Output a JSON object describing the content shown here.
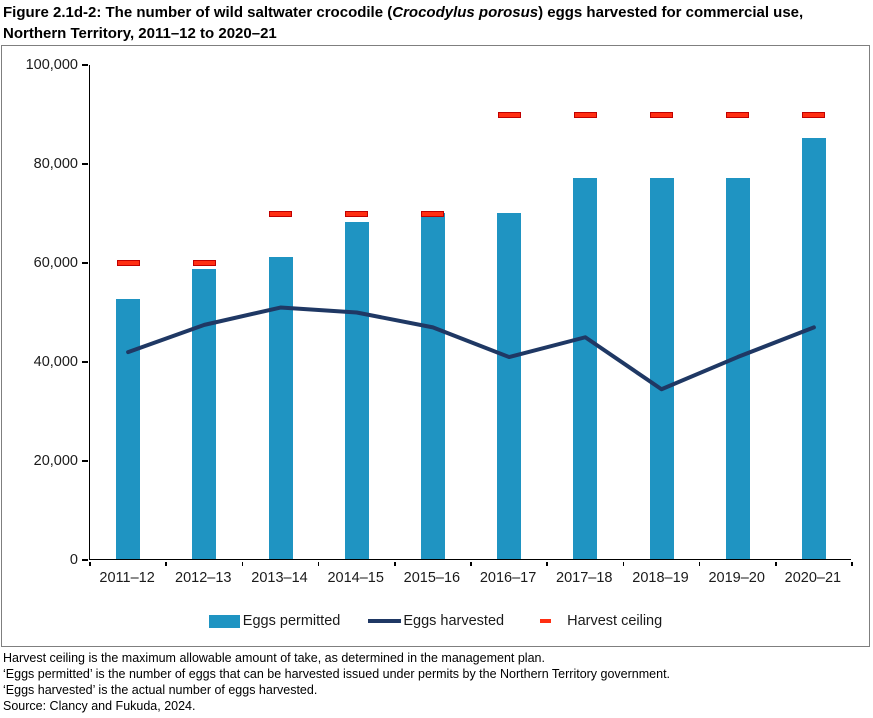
{
  "title": {
    "line1_prefix": "Figure 2.1d-2: The number of wild saltwater crocodile (",
    "line1_species": "Crocodylus porosus",
    "line1_suffix": ") eggs harvested for commercial use,",
    "line2": "Northern Territory, 2011–12 to 2020–21"
  },
  "legend": {
    "permitted": "Eggs permitted",
    "harvested": "Eggs harvested",
    "ceiling": "Harvest ceiling"
  },
  "footnotes": [
    "Harvest ceiling is the maximum allowable amount of take, as determined in the management plan.",
    "‘Eggs permitted’ is the number of eggs that can be harvested issued under permits by the Northern Territory government.",
    "‘Eggs harvested’ is the actual number of eggs harvested.",
    "Source: Clancy and Fukuda, 2024."
  ],
  "colors": {
    "bar": "#1F94C2",
    "line": "#1F3864",
    "ceiling_fill": "#FF2E12",
    "ceiling_border": "#C00000",
    "axis": "#000000",
    "box_border": "#7F7F7F"
  },
  "chart_data": {
    "type": "bar",
    "categories": [
      "2011–12",
      "2012–13",
      "2013–14",
      "2014–15",
      "2015–16",
      "2016–17",
      "2017–18",
      "2018–19",
      "2019–20",
      "2020–21"
    ],
    "series": [
      {
        "name": "Eggs permitted",
        "type": "bar",
        "values": [
          52500,
          58500,
          61000,
          68000,
          70000,
          70000,
          77000,
          77000,
          77000,
          85000
        ]
      },
      {
        "name": "Eggs harvested",
        "type": "line",
        "values": [
          42000,
          47500,
          51000,
          50000,
          47000,
          41000,
          45000,
          34500,
          41000,
          47000
        ]
      },
      {
        "name": "Harvest ceiling",
        "type": "dash",
        "values": [
          60000,
          60000,
          70000,
          70000,
          70000,
          90000,
          90000,
          90000,
          90000,
          90000
        ]
      }
    ],
    "title": "Figure 2.1d-2: The number of wild saltwater crocodile (Crocodylus porosus) eggs harvested for commercial use, Northern Territory, 2011–12 to 2020–21",
    "xlabel": "",
    "ylabel": "",
    "ylim": [
      0,
      100000
    ],
    "y_ticks": [
      0,
      20000,
      40000,
      60000,
      80000,
      100000
    ],
    "y_tick_labels": [
      "0",
      "20,000",
      "40,000",
      "60,000",
      "80,000",
      "100,000"
    ],
    "grid": false,
    "legend_position": "bottom"
  }
}
